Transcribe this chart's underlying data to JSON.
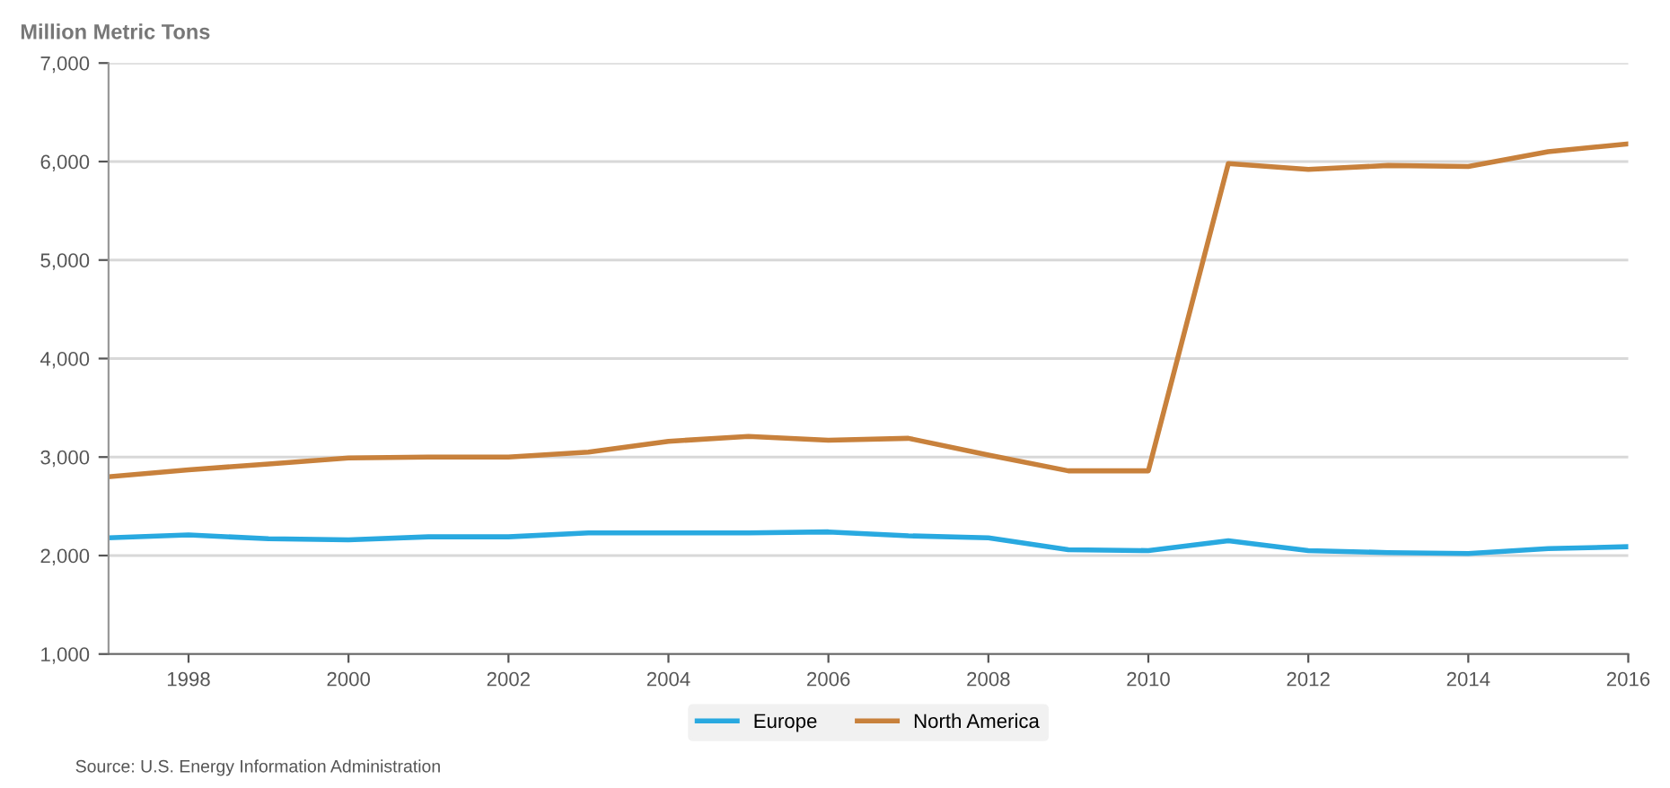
{
  "chart_data": {
    "type": "line",
    "ylabel": "Million Metric Tons",
    "x": [
      1997,
      1998,
      1999,
      2000,
      2001,
      2002,
      2003,
      2004,
      2005,
      2006,
      2007,
      2008,
      2009,
      2010,
      2011,
      2012,
      2013,
      2014,
      2015,
      2016
    ],
    "series": [
      {
        "name": "Europe",
        "color": "#29a9e0",
        "values": [
          2180,
          2210,
          2170,
          2160,
          2190,
          2190,
          2230,
          2230,
          2230,
          2240,
          2200,
          2180,
          2060,
          2050,
          2150,
          2050,
          2030,
          2020,
          2070,
          2090
        ]
      },
      {
        "name": "North America",
        "color": "#c8813c",
        "values": [
          2800,
          2870,
          2930,
          2990,
          3000,
          3000,
          3050,
          3160,
          3210,
          3170,
          3190,
          3020,
          2860,
          2860,
          5980,
          5920,
          5960,
          5950,
          6100,
          6180
        ]
      }
    ],
    "xlim": [
      1997,
      2016
    ],
    "xticks": [
      1998,
      2000,
      2002,
      2004,
      2006,
      2008,
      2010,
      2012,
      2014,
      2016
    ],
    "ylim": [
      1000,
      7000
    ],
    "yticks": [
      {
        "value": 1000,
        "label": "1,000"
      },
      {
        "value": 2000,
        "label": "2,000"
      },
      {
        "value": 3000,
        "label": "3,000"
      },
      {
        "value": 4000,
        "label": "4,000"
      },
      {
        "value": 5000,
        "label": "5,000"
      },
      {
        "value": 6000,
        "label": "6,000"
      },
      {
        "value": 7000,
        "label": "7,000"
      }
    ],
    "grid": "y",
    "legend": "bottom",
    "marker": "none",
    "line_style": "solid",
    "annotations": [
      "Source: U.S. Energy Information Administration"
    ]
  }
}
